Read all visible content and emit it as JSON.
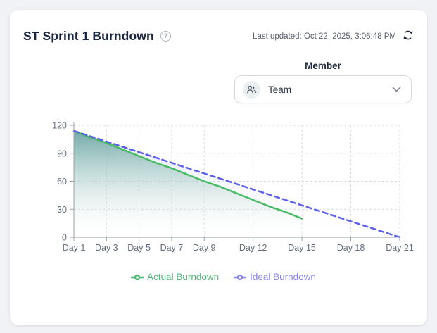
{
  "page": {
    "background": "#f1f2f6",
    "card_background": "#ffffff"
  },
  "header": {
    "title": "ST Sprint 1 Burndown",
    "help_icon": "question-circle-icon",
    "help_glyph": "?",
    "last_updated": "Last updated: Oct 22, 2025, 3:06:48 PM",
    "refresh_icon": "refresh-icon",
    "title_color": "#1b2742"
  },
  "filter": {
    "label": "Member",
    "selected_value": "Team",
    "icon": "people-icon",
    "chevron": "chevron-down-icon"
  },
  "chart_data": {
    "type": "line",
    "title": "ST Sprint 1 Burndown",
    "xlabel": "",
    "ylabel": "",
    "xlim": [
      1,
      21
    ],
    "ylim": [
      0,
      120
    ],
    "y_ticks": [
      0,
      30,
      60,
      90,
      120
    ],
    "x_tick_days": [
      1,
      3,
      5,
      7,
      9,
      12,
      15,
      18,
      21
    ],
    "x_tick_labels": [
      "Day 1",
      "Day 3",
      "Day 5",
      "Day 7",
      "Day 9",
      "Day 12",
      "Day 15",
      "Day 18",
      "Day 21"
    ],
    "grid": true,
    "legend_position": "bottom",
    "axis_color": "#9aa0ab",
    "grid_color": "#d7d9dd",
    "tick_label_color": "#636e7e",
    "series": [
      {
        "name": "Actual Burndown",
        "color": "#47bb61",
        "legend_color": "#53b679",
        "style": "solid",
        "area_top_color": "#3f9e72",
        "area_top_opacity": 0.92,
        "x": [
          1,
          2,
          3,
          4,
          5,
          6,
          7,
          8,
          9,
          10,
          11,
          12,
          13,
          14,
          15
        ],
        "values": [
          114,
          107,
          101,
          94,
          87,
          80,
          74,
          67,
          60,
          54,
          47,
          40,
          33,
          27,
          20
        ]
      },
      {
        "name": "Ideal Burndown",
        "color": "#5d60e8",
        "legend_color": "#8a87ec",
        "style": "dashed",
        "area_top_color": "#9a9cf0",
        "area_top_opacity": 0.32,
        "x": [
          1,
          2,
          3,
          4,
          5,
          6,
          7,
          8,
          9,
          10,
          11,
          12,
          13,
          14,
          15,
          16,
          17,
          18,
          19,
          20,
          21
        ],
        "values": [
          114,
          108.3,
          102.6,
          96.9,
          91.2,
          85.5,
          79.8,
          74.1,
          68.4,
          62.7,
          57,
          51.3,
          45.6,
          39.9,
          34.2,
          28.5,
          22.8,
          17.1,
          11.4,
          5.7,
          0
        ]
      }
    ]
  }
}
